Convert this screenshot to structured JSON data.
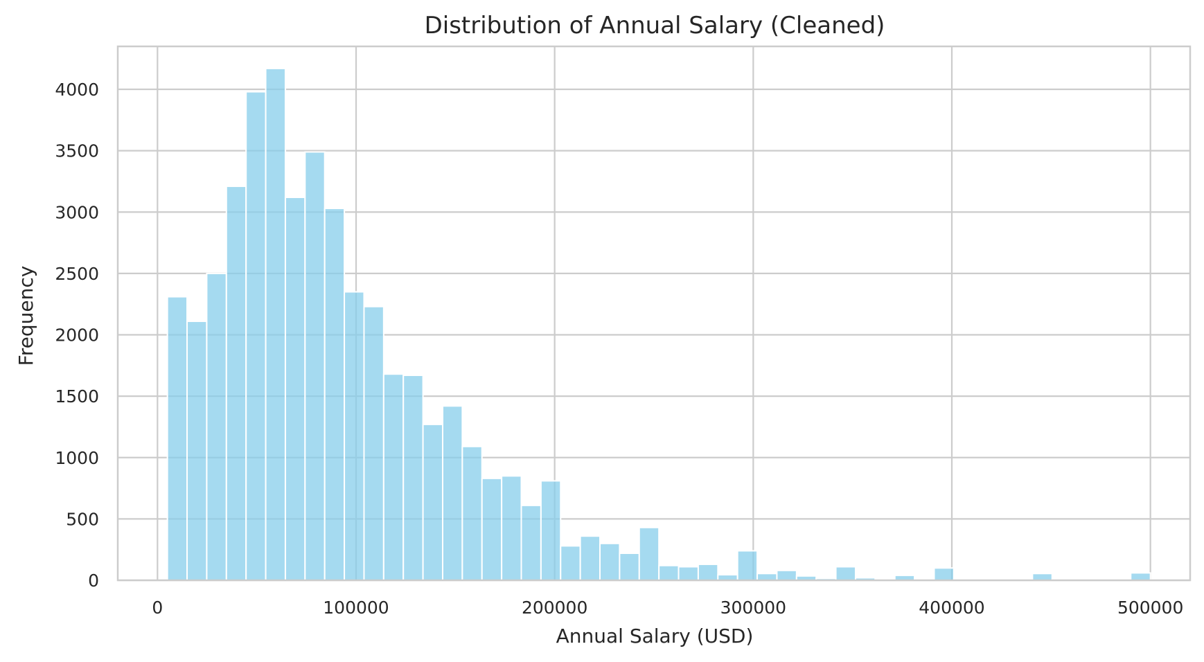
{
  "chart_data": {
    "type": "bar",
    "title": "Distribution of Annual Salary (Cleaned)",
    "xlabel": "Annual Salary (USD)",
    "ylabel": "Frequency",
    "xlim": [
      -20000,
      520000
    ],
    "ylim": [
      0,
      4350
    ],
    "xticks": [
      0,
      100000,
      200000,
      300000,
      400000,
      500000
    ],
    "yticks": [
      0,
      500,
      1000,
      1500,
      2000,
      2500,
      3000,
      3500,
      4000
    ],
    "grid": true,
    "bar_color": "#87ceeb",
    "bin_start": 5000,
    "bin_width": 9900,
    "values": [
      2310,
      2110,
      2500,
      3210,
      3980,
      4170,
      3120,
      3490,
      3030,
      2350,
      2230,
      1680,
      1670,
      1270,
      1420,
      1090,
      830,
      850,
      610,
      810,
      280,
      360,
      300,
      220,
      430,
      120,
      110,
      130,
      45,
      240,
      55,
      80,
      35,
      15,
      110,
      20,
      8,
      40,
      8,
      100,
      5,
      5,
      5,
      5,
      55,
      5,
      5,
      5,
      5,
      60
    ]
  }
}
